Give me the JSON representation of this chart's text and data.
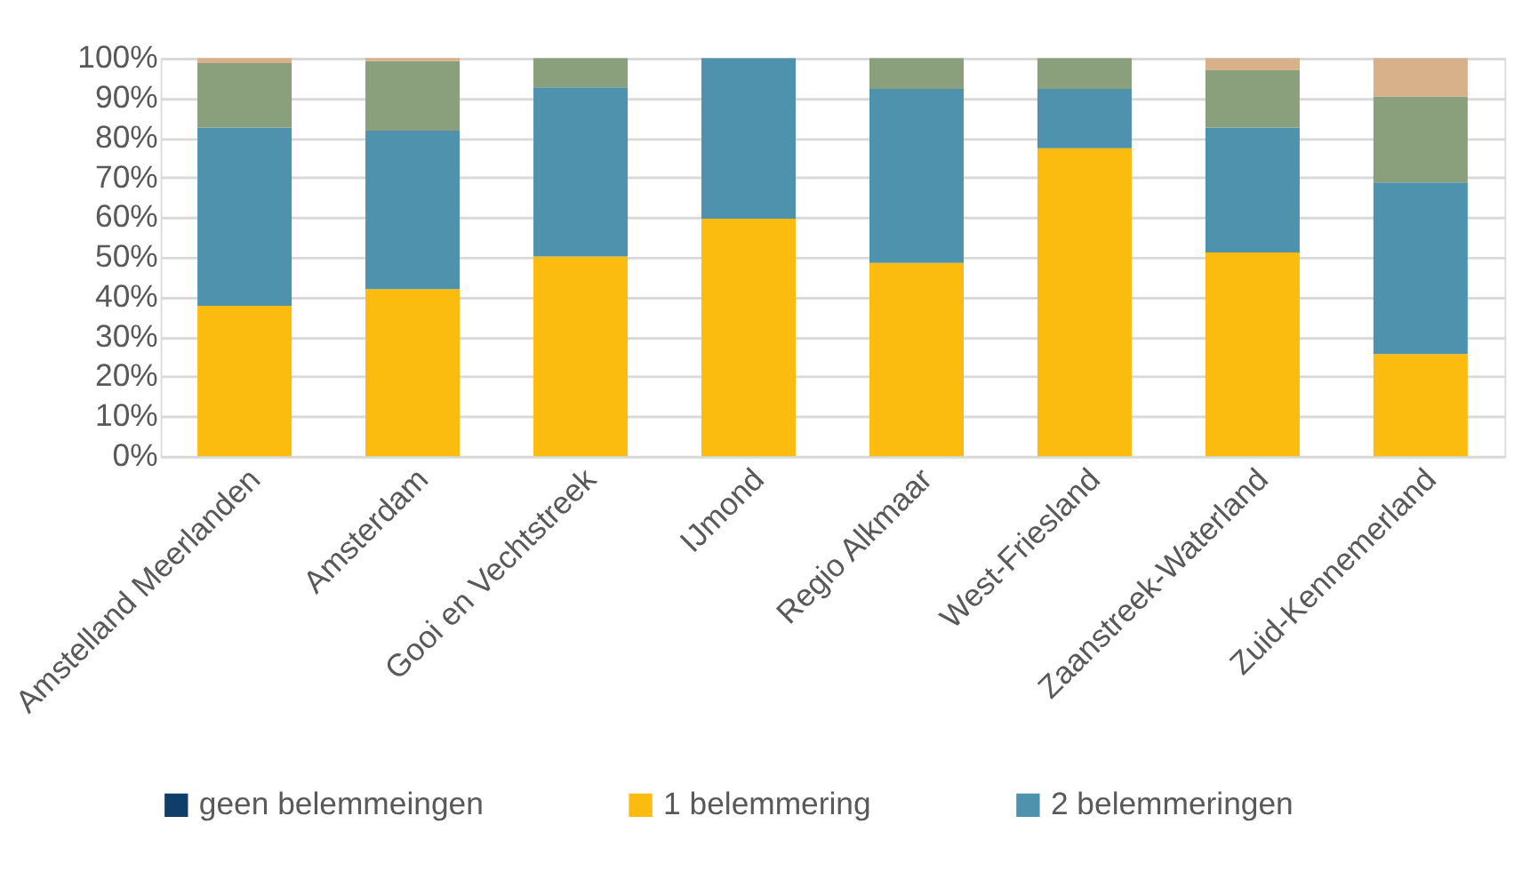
{
  "chart_data": {
    "type": "bar",
    "stacked": true,
    "categories": [
      "Amstelland Meerlanden",
      "Amsterdam",
      "Gooi en Vechtstreek",
      "IJmond",
      "Regio Alkmaar",
      "West-Friesland",
      "Zaanstreek-Waterland",
      "Zuid-Kennemerland"
    ],
    "series": [
      {
        "name": "geen belemmeingen",
        "color": "#0f3e6b",
        "values": [
          0,
          0,
          0,
          0,
          0,
          0,
          0,
          0
        ]
      },
      {
        "name": "1 belemmering",
        "color": "#fbbc0f",
        "values": [
          37.8,
          42.0,
          50.2,
          59.7,
          48.6,
          77.4,
          51.2,
          25.7
        ]
      },
      {
        "name": "2 belemmeringen",
        "color": "#4f92ae",
        "values": [
          44.8,
          39.8,
          42.5,
          40.3,
          43.7,
          14.9,
          31.4,
          43.1
        ]
      },
      {
        "color": "#8a9f7b",
        "values": [
          16.2,
          17.5,
          7.3,
          0,
          7.7,
          7.7,
          14.5,
          21.6
        ]
      },
      {
        "color": "#d8b08a",
        "values": [
          1.2,
          0.7,
          0,
          0,
          0,
          0,
          2.9,
          9.6
        ]
      }
    ],
    "ylim": [
      0,
      100
    ],
    "yticks": [
      {
        "value": 0,
        "label": "0%"
      },
      {
        "value": 10,
        "label": "10%"
      },
      {
        "value": 20,
        "label": "20%"
      },
      {
        "value": 30,
        "label": "30%"
      },
      {
        "value": 40,
        "label": "40%"
      },
      {
        "value": 50,
        "label": "50%"
      },
      {
        "value": 60,
        "label": "60%"
      },
      {
        "value": 70,
        "label": "70%"
      },
      {
        "value": 80,
        "label": "80%"
      },
      {
        "value": 90,
        "label": "90%"
      },
      {
        "value": 100,
        "label": "100%"
      }
    ],
    "grid": "y",
    "legend": "bottom"
  }
}
